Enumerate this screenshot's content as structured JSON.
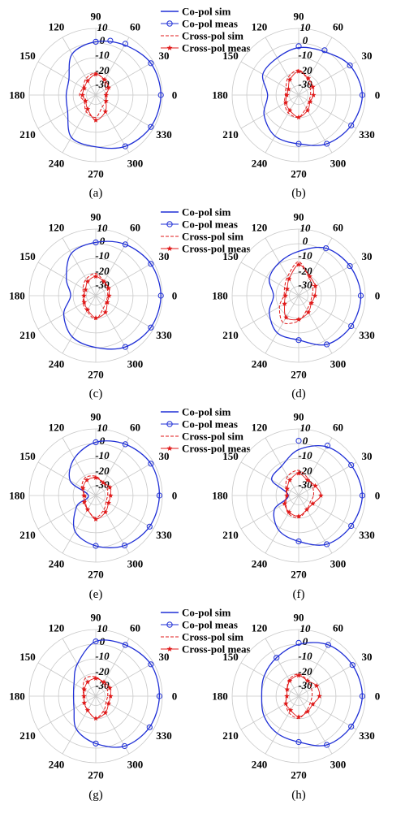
{
  "colors": {
    "co_pol": "#1f2fd6",
    "cross_pol": "#e01818",
    "grid": "#c8c8c8"
  },
  "legend": [
    {
      "label": "Co-pol sim",
      "style": "solid-line",
      "color": "#1f2fd6"
    },
    {
      "label": "Co-pol meas",
      "style": "circle-markers",
      "color": "#1f2fd6"
    },
    {
      "label": "Cross-pol sim",
      "style": "dashed-line",
      "color": "#e01818"
    },
    {
      "label": "Cross-pol meas",
      "style": "star-markers",
      "color": "#e01818"
    }
  ],
  "chart_data": [
    {
      "type": "polar-line",
      "caption": "(a)",
      "angle_labels": [
        "0",
        "30",
        "60",
        "90",
        "120",
        "150",
        "180",
        "210",
        "240",
        "270",
        "300",
        "330"
      ],
      "radial_ticks": [
        "10",
        "0",
        "-10",
        "-20",
        "-30"
      ],
      "rlim": [
        -35,
        10
      ],
      "legend": "top-right",
      "series": [
        {
          "name": "Co-pol sim",
          "angles": [
            0,
            30,
            60,
            90,
            120,
            150,
            180,
            210,
            240,
            270,
            300,
            330
          ],
          "values": [
            9,
            8,
            4,
            1,
            -3,
            -14,
            -15,
            -13,
            -2,
            0,
            5,
            8
          ]
        },
        {
          "name": "Co-pol meas",
          "angles": [
            0,
            30,
            60,
            75,
            90,
            300,
            330
          ],
          "values": [
            9,
            8,
            5,
            3,
            1,
            5,
            8
          ]
        },
        {
          "name": "Cross-pol sim",
          "angles": [
            0,
            30,
            60,
            90,
            120,
            150,
            180,
            210,
            240,
            270,
            300,
            330
          ],
          "values": [
            -28,
            -27,
            -24,
            -20,
            -22,
            -25,
            -24,
            -26,
            -22,
            -20,
            -26,
            -27
          ]
        },
        {
          "name": "Cross-pol meas",
          "angles": [
            0,
            30,
            60,
            90,
            120,
            150,
            180,
            210,
            240,
            270,
            300,
            330
          ],
          "values": [
            -28,
            -25,
            -23,
            -21,
            -24,
            -26,
            -26,
            -27,
            -24,
            -18,
            -22,
            -27
          ]
        }
      ]
    },
    {
      "type": "polar-line",
      "caption": "(b)",
      "angle_labels": [
        "0",
        "30",
        "60",
        "90",
        "120",
        "150",
        "180",
        "210",
        "240",
        "270",
        "300",
        "330"
      ],
      "radial_ticks": [
        "10",
        "0",
        "-10",
        "-20",
        "-30"
      ],
      "rlim": [
        -35,
        10
      ],
      "series": [
        {
          "name": "Co-pol sim",
          "angles": [
            0,
            30,
            60,
            90,
            120,
            150,
            180,
            210,
            240,
            270,
            300,
            330
          ],
          "values": [
            8,
            5,
            -1,
            -3,
            -6,
            -7,
            -14,
            -8,
            -3,
            -2,
            3,
            6
          ]
        },
        {
          "name": "Co-pol meas",
          "angles": [
            0,
            30,
            60,
            90,
            270,
            300,
            330
          ],
          "values": [
            8,
            5,
            0,
            -2,
            -2,
            3,
            6
          ]
        },
        {
          "name": "Cross-pol sim",
          "angles": [
            0,
            30,
            60,
            90,
            120,
            150,
            180,
            210,
            240,
            270,
            300,
            330
          ],
          "values": [
            -27,
            -26,
            -23,
            -18,
            -21,
            -25,
            -26,
            -24,
            -21,
            -20,
            -25,
            -27
          ]
        },
        {
          "name": "Cross-pol meas",
          "angles": [
            0,
            30,
            60,
            90,
            120,
            150,
            180,
            210,
            240,
            270,
            300,
            330
          ],
          "values": [
            -25,
            -24,
            -22,
            -19,
            -23,
            -27,
            -27,
            -25,
            -23,
            -20,
            -23,
            -26
          ]
        }
      ]
    },
    {
      "type": "polar-line",
      "caption": "(c)",
      "angle_labels": [
        "0",
        "30",
        "60",
        "90",
        "120",
        "150",
        "180",
        "210",
        "240",
        "270",
        "300",
        "330"
      ],
      "radial_ticks": [
        "10",
        "0",
        "-10",
        "-20",
        "-30"
      ],
      "rlim": [
        -35,
        10
      ],
      "legend": "top-right",
      "series": [
        {
          "name": "Co-pol sim",
          "angles": [
            0,
            30,
            60,
            90,
            120,
            150,
            180,
            210,
            240,
            270,
            300,
            330
          ],
          "values": [
            9,
            8,
            5,
            1,
            -2,
            -12,
            -18,
            -10,
            -3,
            0,
            5,
            8
          ]
        },
        {
          "name": "Co-pol meas",
          "angles": [
            0,
            30,
            60,
            90,
            300,
            330
          ],
          "values": [
            9,
            8,
            5,
            1,
            5,
            8
          ]
        },
        {
          "name": "Cross-pol sim",
          "angles": [
            0,
            30,
            60,
            90,
            120,
            150,
            180,
            210,
            240,
            270,
            300,
            330
          ],
          "values": [
            -27,
            -26,
            -24,
            -20,
            -22,
            -25,
            -27,
            -25,
            -23,
            -19,
            -25,
            -27
          ]
        },
        {
          "name": "Cross-pol meas",
          "angles": [
            0,
            30,
            60,
            90,
            120,
            150,
            180,
            210,
            240,
            270,
            300,
            330
          ],
          "values": [
            -26,
            -25,
            -24,
            -22,
            -24,
            -27,
            -27,
            -26,
            -24,
            -20,
            -22,
            -26
          ]
        }
      ]
    },
    {
      "type": "polar-line",
      "caption": "(d)",
      "angle_labels": [
        "0",
        "30",
        "60",
        "90",
        "120",
        "150",
        "180",
        "210",
        "240",
        "270",
        "300",
        "330"
      ],
      "radial_ticks": [
        "10",
        "0",
        "-10",
        "-20",
        "-30"
      ],
      "rlim": [
        -35,
        10
      ],
      "series": [
        {
          "name": "Co-pol sim",
          "angles": [
            0,
            30,
            60,
            90,
            120,
            150,
            180,
            210,
            240,
            270,
            300,
            330
          ],
          "values": [
            7,
            5,
            2,
            -5,
            -9,
            -12,
            -18,
            -12,
            -6,
            -5,
            3,
            6
          ]
        },
        {
          "name": "Co-pol meas",
          "angles": [
            0,
            30,
            60,
            270,
            300,
            330
          ],
          "values": [
            7,
            5,
            2,
            -5,
            3,
            6
          ]
        },
        {
          "name": "Cross-pol sim",
          "angles": [
            0,
            30,
            60,
            90,
            120,
            150,
            180,
            210,
            240,
            270,
            300,
            330
          ],
          "values": [
            -26,
            -24,
            -21,
            -12,
            -20,
            -24,
            -25,
            -20,
            -14,
            -18,
            -24,
            -26
          ]
        },
        {
          "name": "Cross-pol meas",
          "angles": [
            0,
            30,
            60,
            90,
            120,
            150,
            180,
            210,
            240,
            270,
            300,
            330
          ],
          "values": [
            -24,
            -22,
            -20,
            -14,
            -22,
            -26,
            -26,
            -24,
            -18,
            -19,
            -22,
            -25
          ]
        }
      ]
    },
    {
      "type": "polar-line",
      "caption": "(e)",
      "angle_labels": [
        "0",
        "30",
        "60",
        "90",
        "120",
        "150",
        "180",
        "210",
        "240",
        "270",
        "300",
        "330"
      ],
      "radial_ticks": [
        "10",
        "0",
        "-10",
        "-20",
        "-30"
      ],
      "rlim": [
        -35,
        10
      ],
      "legend": "top-right",
      "series": [
        {
          "name": "Co-pol sim",
          "angles": [
            0,
            30,
            60,
            90,
            120,
            150,
            180,
            210,
            240,
            270,
            300,
            330
          ],
          "values": [
            8,
            8,
            5,
            1,
            -6,
            -15,
            -30,
            -20,
            -7,
            -1,
            4,
            7
          ]
        },
        {
          "name": "Co-pol meas",
          "angles": [
            0,
            30,
            60,
            90,
            270,
            300,
            330
          ],
          "values": [
            8,
            8,
            5,
            1,
            -1,
            4,
            7
          ]
        },
        {
          "name": "Cross-pol sim",
          "angles": [
            0,
            30,
            60,
            90,
            120,
            150,
            180,
            210,
            240,
            270,
            300,
            330
          ],
          "values": [
            -27,
            -26,
            -25,
            -22,
            -21,
            -24,
            -28,
            -27,
            -24,
            -20,
            -24,
            -27
          ]
        },
        {
          "name": "Cross-pol meas",
          "angles": [
            0,
            30,
            60,
            90,
            120,
            150,
            180,
            210,
            240,
            270,
            300,
            330
          ],
          "values": [
            -25,
            -24,
            -25,
            -23,
            -23,
            -25,
            -27,
            -26,
            -24,
            -19,
            -22,
            -25
          ]
        }
      ]
    },
    {
      "type": "polar-line",
      "caption": "(f)",
      "angle_labels": [
        "0",
        "30",
        "60",
        "90",
        "120",
        "150",
        "180",
        "210",
        "240",
        "270",
        "300",
        "330"
      ],
      "radial_ticks": [
        "10",
        "0",
        "-10",
        "-20",
        "-30"
      ],
      "rlim": [
        -35,
        10
      ],
      "series": [
        {
          "name": "Co-pol sim",
          "angles": [
            0,
            30,
            60,
            90,
            120,
            150,
            180,
            210,
            240,
            270,
            300,
            330
          ],
          "values": [
            8,
            6,
            3,
            -4,
            -12,
            -14,
            -28,
            -16,
            -8,
            -4,
            3,
            6
          ]
        },
        {
          "name": "Co-pol meas",
          "angles": [
            0,
            30,
            60,
            90,
            270,
            300,
            330
          ],
          "values": [
            8,
            6,
            4,
            2,
            -4,
            3,
            6
          ]
        },
        {
          "name": "Cross-pol sim",
          "angles": [
            0,
            30,
            60,
            90,
            120,
            150,
            180,
            210,
            240,
            270,
            300,
            330
          ],
          "values": [
            -25,
            -24,
            -22,
            -18,
            -20,
            -25,
            -27,
            -25,
            -21,
            -20,
            -24,
            -26
          ]
        },
        {
          "name": "Cross-pol meas",
          "angles": [
            0,
            30,
            60,
            90,
            120,
            150,
            180,
            210,
            240,
            270,
            300,
            330
          ],
          "values": [
            -20,
            -22,
            -23,
            -20,
            -23,
            -26,
            -27,
            -24,
            -22,
            -21,
            -24,
            -24
          ]
        }
      ]
    },
    {
      "type": "polar-line",
      "caption": "(g)",
      "angle_labels": [
        "0",
        "30",
        "60",
        "90",
        "120",
        "150",
        "180",
        "210",
        "240",
        "270",
        "300",
        "330"
      ],
      "radial_ticks": [
        "10",
        "0",
        "-10",
        "-20",
        "-30"
      ],
      "rlim": [
        -35,
        10
      ],
      "legend": "top-right",
      "series": [
        {
          "name": "Co-pol sim",
          "angles": [
            0,
            30,
            60,
            90,
            120,
            150,
            180,
            210,
            240,
            270,
            300,
            330
          ],
          "values": [
            8,
            8,
            5,
            2,
            -10,
            -18,
            -20,
            -18,
            -9,
            -3,
            4,
            7
          ]
        },
        {
          "name": "Co-pol meas",
          "angles": [
            0,
            30,
            60,
            90,
            270,
            300,
            330
          ],
          "values": [
            8,
            8,
            5,
            2,
            -3,
            4,
            7
          ]
        },
        {
          "name": "Cross-pol sim",
          "angles": [
            0,
            30,
            60,
            90,
            120,
            150,
            180,
            210,
            240,
            270,
            300,
            330
          ],
          "values": [
            -27,
            -26,
            -25,
            -22,
            -21,
            -25,
            -27,
            -26,
            -24,
            -20,
            -24,
            -27
          ]
        },
        {
          "name": "Cross-pol meas",
          "angles": [
            0,
            30,
            60,
            90,
            120,
            150,
            180,
            210,
            240,
            270,
            300,
            330
          ],
          "values": [
            -25,
            -24,
            -24,
            -23,
            -24,
            -26,
            -27,
            -26,
            -24,
            -20,
            -22,
            -25
          ]
        }
      ]
    },
    {
      "type": "polar-line",
      "caption": "(h)",
      "angle_labels": [
        "0",
        "30",
        "60",
        "90",
        "120",
        "150",
        "180",
        "210",
        "240",
        "270",
        "300",
        "330"
      ],
      "radial_ticks": [
        "10",
        "0",
        "-10",
        "-20",
        "-30"
      ],
      "rlim": [
        -35,
        10
      ],
      "series": [
        {
          "name": "Co-pol sim",
          "angles": [
            0,
            30,
            60,
            90,
            120,
            150,
            180,
            210,
            240,
            270,
            300,
            330
          ],
          "values": [
            8,
            7,
            5,
            0,
            -5,
            -8,
            -10,
            -8,
            -6,
            -4,
            3,
            6
          ]
        },
        {
          "name": "Co-pol meas",
          "angles": [
            0,
            30,
            60,
            90,
            120,
            270,
            300,
            330
          ],
          "values": [
            8,
            7,
            5,
            1,
            -5,
            -4,
            3,
            6
          ]
        },
        {
          "name": "Cross-pol sim",
          "angles": [
            0,
            30,
            60,
            90,
            120,
            150,
            180,
            210,
            240,
            270,
            300,
            330
          ],
          "values": [
            -26,
            -25,
            -23,
            -20,
            -22,
            -26,
            -27,
            -25,
            -22,
            -20,
            -24,
            -26
          ]
        },
        {
          "name": "Cross-pol meas",
          "angles": [
            0,
            30,
            60,
            90,
            120,
            150,
            180,
            210,
            240,
            270,
            300,
            330
          ],
          "values": [
            -21,
            -21,
            -23,
            -21,
            -23,
            -26,
            -27,
            -25,
            -24,
            -21,
            -23,
            -24
          ]
        }
      ]
    }
  ]
}
